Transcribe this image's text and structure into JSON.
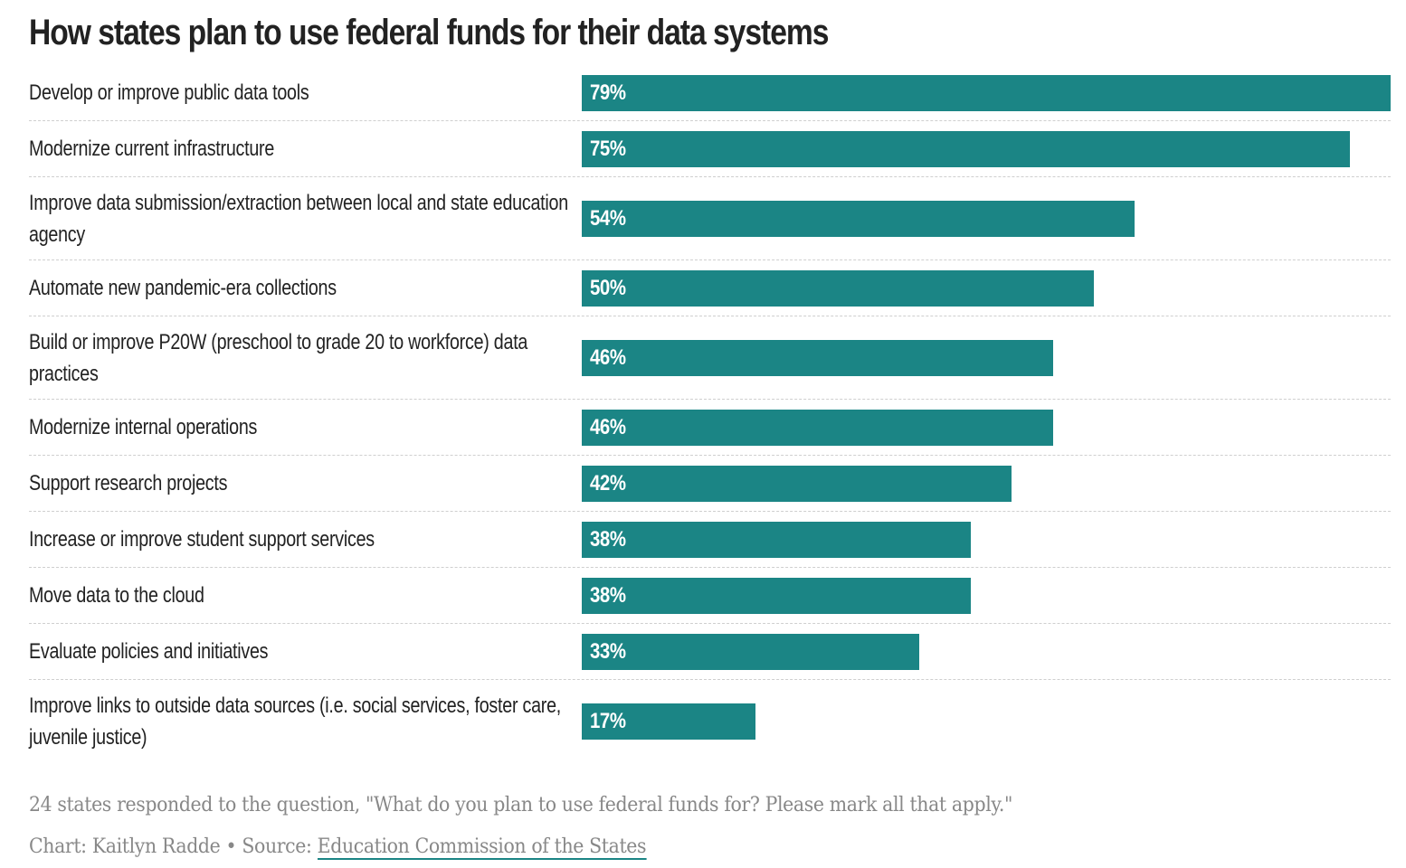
{
  "title": "How states plan to use federal funds for their data systems",
  "colors": {
    "bar": "#1b8585",
    "label_text": "#222222",
    "note_text": "#888888"
  },
  "chart_data": {
    "type": "bar",
    "orientation": "horizontal",
    "title": "How states plan to use federal funds for their data systems",
    "categories": [
      "Develop or improve public data tools",
      "Modernize current infrastructure",
      "Improve data submission/extraction between local and state education agency",
      "Automate new pandemic-era collections",
      "Build or improve P20W (preschool to grade 20 to workforce) data practices",
      "Modernize internal operations",
      "Support research projects",
      "Increase or improve student support services",
      "Move data to the cloud",
      "Evaluate policies and initiatives",
      "Improve links to outside data sources (i.e. social services, foster care, juvenile justice)"
    ],
    "values": [
      79,
      75,
      54,
      50,
      46,
      46,
      42,
      38,
      38,
      33,
      17
    ],
    "value_labels": [
      "79%",
      "75%",
      "54%",
      "50%",
      "46%",
      "46%",
      "42%",
      "38%",
      "38%",
      "33%",
      "17%"
    ],
    "unit": "%",
    "xlim": [
      0,
      79
    ],
    "grid": false,
    "legend": "none"
  },
  "notes": {
    "description": "24 states responded to the question, \"What do you plan to use federal funds for? Please mark all that apply.\"",
    "credit": "Chart: Kaitlyn Radde",
    "separator": " • ",
    "source_prefix": "Source: ",
    "source_link": "Education Commission of the States"
  }
}
